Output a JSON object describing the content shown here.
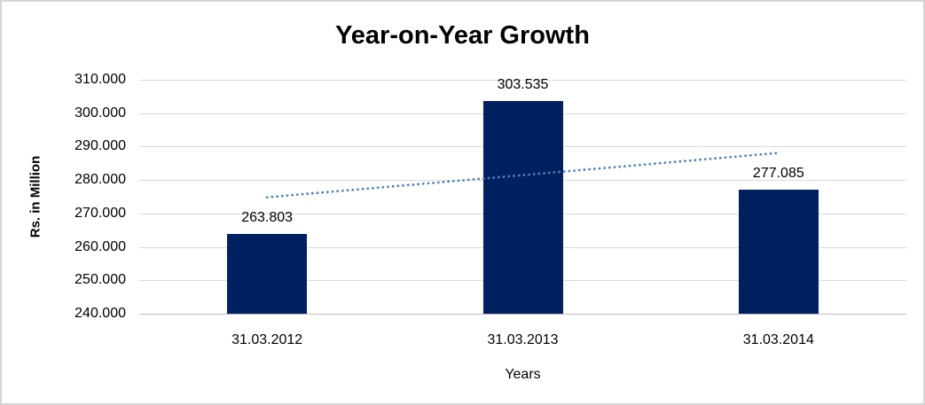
{
  "chart_data": {
    "type": "bar",
    "title": "Year-on-Year Growth",
    "xlabel": "Years",
    "ylabel": "Rs. in Million",
    "categories": [
      "31.03.2012",
      "31.03.2013",
      "31.03.2014"
    ],
    "values": [
      263.803,
      303.535,
      277.085
    ],
    "data_labels": [
      "263.803",
      "303.535",
      "277.085"
    ],
    "y_ticks": [
      {
        "value": 240,
        "label": "240.000"
      },
      {
        "value": 250,
        "label": "250.000"
      },
      {
        "value": 260,
        "label": "260.000"
      },
      {
        "value": 270,
        "label": "270.000"
      },
      {
        "value": 280,
        "label": "280.000"
      },
      {
        "value": 290,
        "label": "290.000"
      },
      {
        "value": 300,
        "label": "300.000"
      },
      {
        "value": 310,
        "label": "310.000"
      }
    ],
    "ylim": [
      240,
      310
    ],
    "grid": true,
    "legend": "none",
    "colors": {
      "bar": "#002060",
      "trendline": "#4f81bd",
      "gridline": "#d9d9d9",
      "axis_line": "#c0c0c0",
      "text": "#000000",
      "frame_border": "#d5d5d5",
      "background": "#ffffff"
    },
    "trendline": {
      "type": "linear",
      "style": "dotted",
      "color": "#4f81bd",
      "start_value": 274.833,
      "end_value": 288.116
    }
  }
}
